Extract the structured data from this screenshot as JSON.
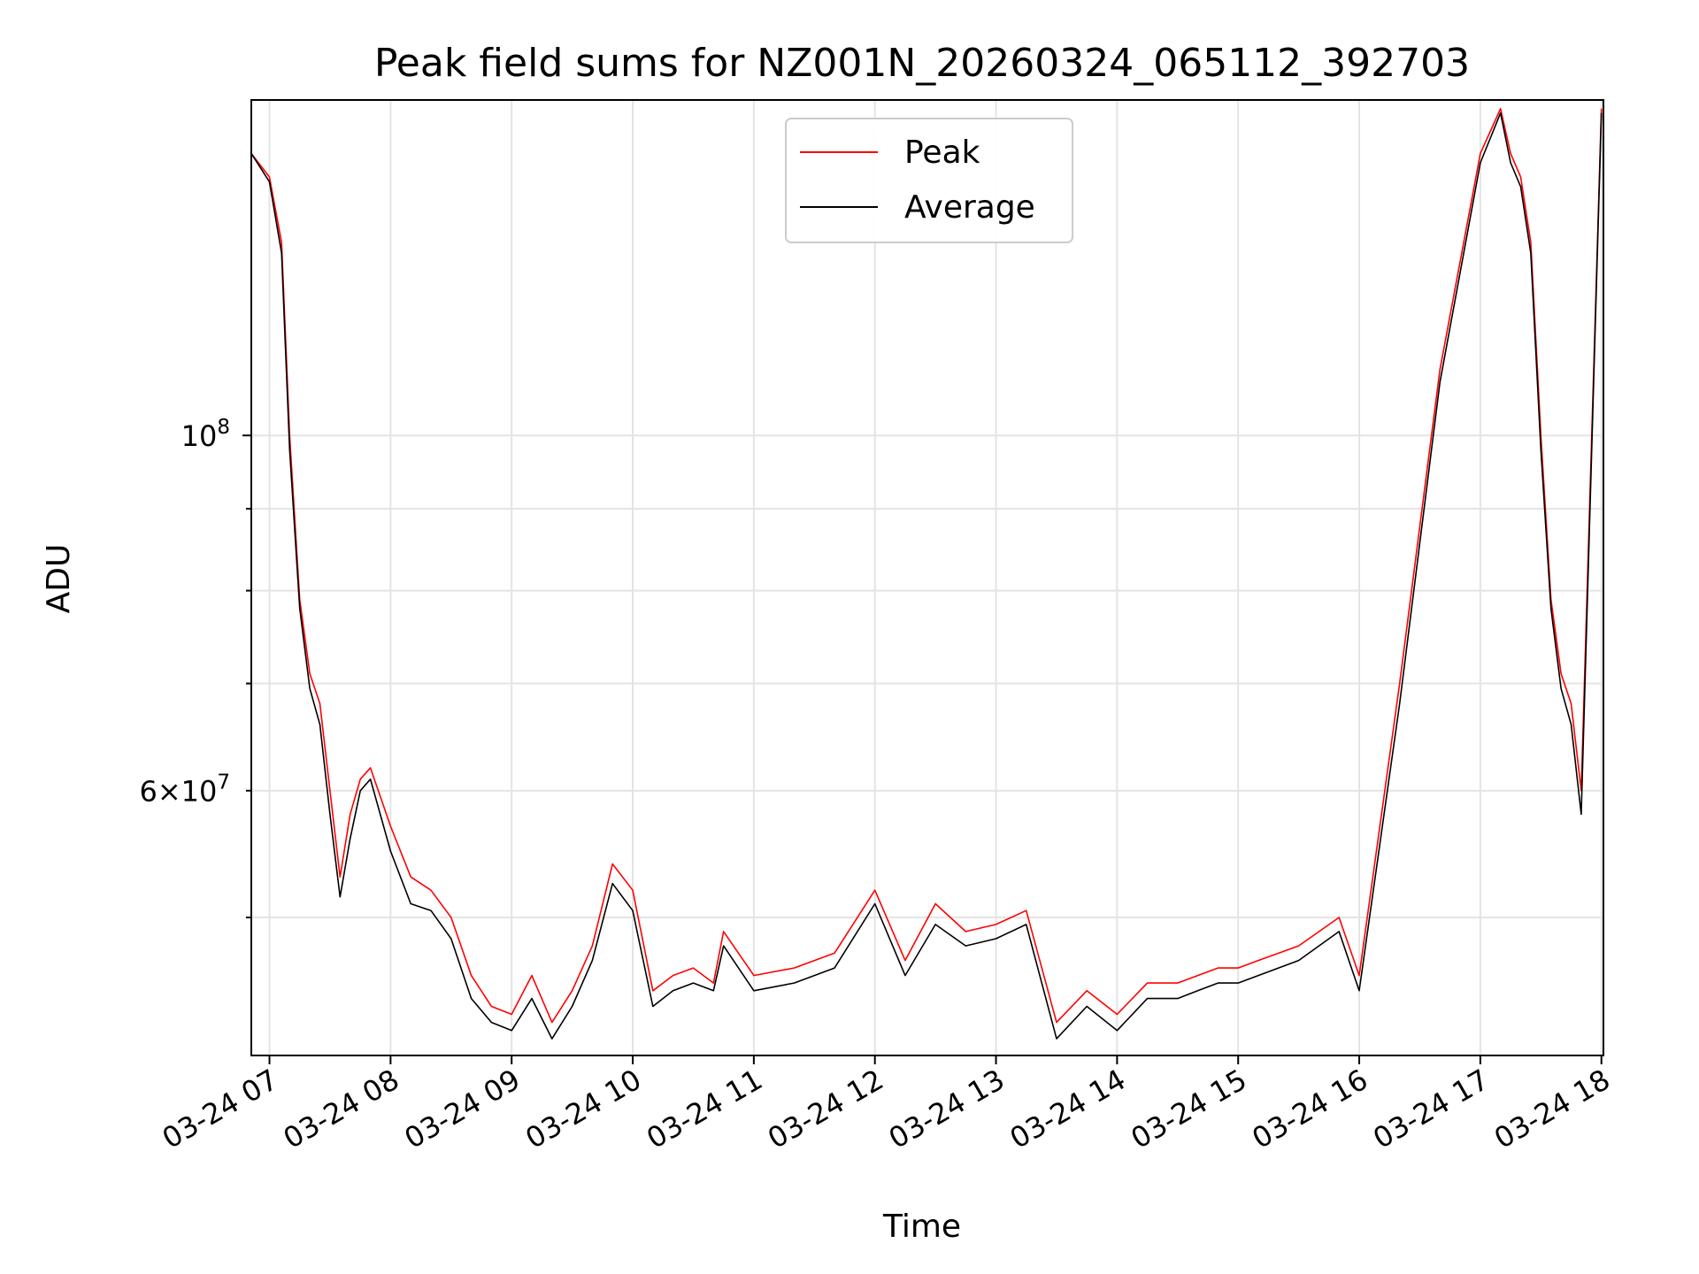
{
  "chart_data": {
    "type": "line",
    "title": "Peak field sums for NZ001N_20260324_065112_392703",
    "xlabel": "Time",
    "ylabel": "ADU",
    "yscale": "log",
    "grid": true,
    "legend_position": "upper center",
    "xlim": [
      "2026-03-24 06:51",
      "2026-03-24 18:01"
    ],
    "ylim": [
      41000000,
      162000000
    ],
    "x_ticks": [
      "03-24 07",
      "03-24 08",
      "03-24 09",
      "03-24 10",
      "03-24 11",
      "03-24 12",
      "03-24 13",
      "03-24 14",
      "03-24 15",
      "03-24 16",
      "03-24 17",
      "03-24 18"
    ],
    "y_ticks": [
      "10^8",
      "6×10^7"
    ],
    "x": [
      "2026-03-24 06:51",
      "2026-03-24 07:00",
      "2026-03-24 07:06",
      "2026-03-24 07:10",
      "2026-03-24 07:15",
      "2026-03-24 07:20",
      "2026-03-24 07:25",
      "2026-03-24 07:30",
      "2026-03-24 07:35",
      "2026-03-24 07:40",
      "2026-03-24 07:45",
      "2026-03-24 07:50",
      "2026-03-24 08:00",
      "2026-03-24 08:10",
      "2026-03-24 08:20",
      "2026-03-24 08:30",
      "2026-03-24 08:40",
      "2026-03-24 08:50",
      "2026-03-24 09:00",
      "2026-03-24 09:10",
      "2026-03-24 09:20",
      "2026-03-24 09:30",
      "2026-03-24 09:40",
      "2026-03-24 09:50",
      "2026-03-24 10:00",
      "2026-03-24 10:10",
      "2026-03-24 10:20",
      "2026-03-24 10:30",
      "2026-03-24 10:40",
      "2026-03-24 10:45",
      "2026-03-24 11:00",
      "2026-03-24 11:20",
      "2026-03-24 11:40",
      "2026-03-24 12:00",
      "2026-03-24 12:15",
      "2026-03-24 12:30",
      "2026-03-24 12:45",
      "2026-03-24 13:00",
      "2026-03-24 13:15",
      "2026-03-24 13:30",
      "2026-03-24 13:45",
      "2026-03-24 14:00",
      "2026-03-24 14:15",
      "2026-03-24 14:30",
      "2026-03-24 14:40",
      "2026-03-24 14:50",
      "2026-03-24 15:00",
      "2026-03-24 15:10",
      "2026-03-24 15:30",
      "2026-03-24 15:50",
      "2026-03-24 16:00",
      "2026-03-24 16:20",
      "2026-03-24 16:40",
      "2026-03-24 17:00",
      "2026-03-24 17:10",
      "2026-03-24 17:15",
      "2026-03-24 17:20",
      "2026-03-24 17:25",
      "2026-03-24 17:30",
      "2026-03-24 17:35",
      "2026-03-24 17:40",
      "2026-03-24 17:45",
      "2026-03-24 17:50",
      "2026-03-24 18:00"
    ],
    "series": [
      {
        "name": "Peak",
        "color": "#ff0000",
        "values": [
          150000000,
          145000000,
          132000000,
          100000000,
          79000000,
          71000000,
          68000000,
          60000000,
          53000000,
          58000000,
          61000000,
          62000000,
          57000000,
          53000000,
          52000000,
          50000000,
          46000000,
          44000000,
          43500000,
          46000000,
          43000000,
          45000000,
          48000000,
          54000000,
          52000000,
          45000000,
          46000000,
          46500000,
          45500000,
          49000000,
          46000000,
          46500000,
          47500000,
          52000000,
          47000000,
          51000000,
          49000000,
          49500000,
          50500000,
          43000000,
          45000000,
          43500000,
          45500000,
          45500000,
          46000000,
          46500000,
          46500000,
          47000000,
          48000000,
          50000000,
          46000000,
          70000000,
          110000000,
          150000000,
          160000000,
          150000000,
          145000000,
          132000000,
          100000000,
          79000000,
          71000000,
          68000000,
          60000000,
          160000000
        ]
      },
      {
        "name": "Average",
        "color": "#000000",
        "values": [
          150000000,
          144000000,
          130000000,
          98000000,
          78000000,
          69500000,
          66000000,
          58000000,
          51500000,
          56000000,
          60000000,
          61000000,
          55000000,
          51000000,
          50500000,
          48500000,
          44500000,
          43000000,
          42500000,
          44500000,
          42000000,
          44000000,
          47000000,
          52500000,
          50500000,
          44000000,
          45000000,
          45500000,
          45000000,
          48000000,
          45000000,
          45500000,
          46500000,
          51000000,
          46000000,
          49500000,
          48000000,
          48500000,
          49500000,
          42000000,
          44000000,
          42500000,
          44500000,
          44500000,
          45000000,
          45500000,
          45500000,
          46000000,
          47000000,
          49000000,
          45000000,
          68000000,
          108000000,
          148000000,
          159000000,
          148000000,
          143000000,
          130000000,
          98000000,
          78000000,
          69500000,
          66000000,
          58000000,
          159000000
        ]
      }
    ]
  }
}
